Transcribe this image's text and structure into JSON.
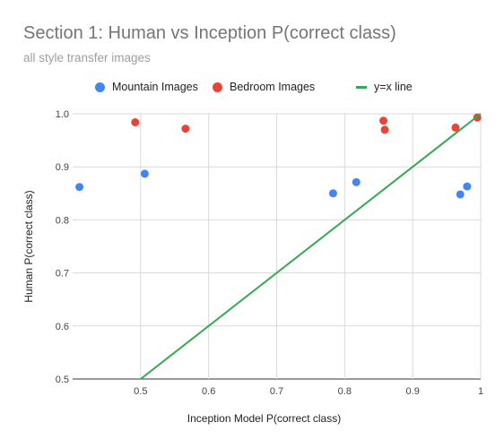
{
  "chart_data": {
    "type": "scatter",
    "title": "Section 1: Human vs Inception P(correct class)",
    "subtitle": "all style transfer images",
    "xlabel": "Inception Model P(correct class)",
    "ylabel": "Human P(correct class)",
    "xlim": [
      0.4,
      1.0
    ],
    "ylim": [
      0.5,
      1.0
    ],
    "xticks": [
      "0.5",
      "0.6",
      "0.7",
      "0.8",
      "0.9",
      "1"
    ],
    "yticks": [
      "0.5",
      "0.6",
      "0.7",
      "0.8",
      "0.9",
      "1.0"
    ],
    "grid": true,
    "legend_position": "top",
    "series": [
      {
        "name": "Mountain Images",
        "color": "#4285f4",
        "points": [
          {
            "x": 0.41,
            "y": 0.862
          },
          {
            "x": 0.506,
            "y": 0.887
          },
          {
            "x": 0.783,
            "y": 0.85
          },
          {
            "x": 0.817,
            "y": 0.871
          },
          {
            "x": 0.97,
            "y": 0.848
          },
          {
            "x": 0.98,
            "y": 0.863
          }
        ]
      },
      {
        "name": "Bedroom Images",
        "color": "#ea4335",
        "points": [
          {
            "x": 0.492,
            "y": 0.984
          },
          {
            "x": 0.566,
            "y": 0.972
          },
          {
            "x": 0.857,
            "y": 0.987
          },
          {
            "x": 0.859,
            "y": 0.97
          },
          {
            "x": 0.963,
            "y": 0.974
          },
          {
            "x": 0.995,
            "y": 0.993
          }
        ]
      },
      {
        "name": "y=x line",
        "type": "line",
        "color": "#34a853",
        "points": [
          {
            "x": 0.5,
            "y": 0.5
          },
          {
            "x": 1.0,
            "y": 1.0
          }
        ]
      }
    ]
  }
}
